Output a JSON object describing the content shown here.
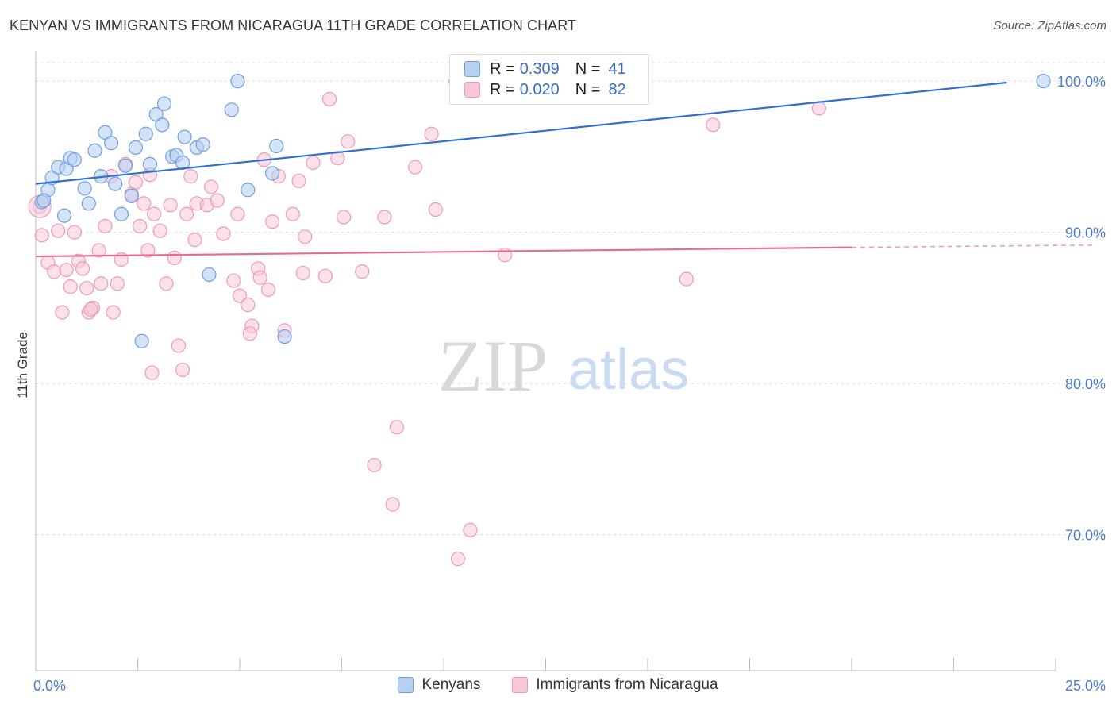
{
  "title": "KENYAN VS IMMIGRANTS FROM NICARAGUA 11TH GRADE CORRELATION CHART",
  "source": "Source: ZipAtlas.com",
  "watermark": {
    "zip": "ZIP",
    "atlas": "atlas"
  },
  "colors": {
    "blue_fill": "#b8d0f0",
    "blue_stroke": "#6f9fe0",
    "blue_line": "#2f6fcf",
    "pink_fill": "#f9c8d8",
    "pink_stroke": "#ee9ab6",
    "pink_line": "#e56d95",
    "tick_text": "#4a7cc9",
    "grid": "#d9d9d9"
  },
  "legend": {
    "rows": [
      {
        "r_label": "R =",
        "r_value": "0.309",
        "n_label": "N =",
        "n_value": "41"
      },
      {
        "r_label": "R =",
        "r_value": "0.020",
        "n_label": "N =",
        "n_value": "82"
      }
    ]
  },
  "series_labels": [
    "Kenyans",
    "Immigrants from Nicaragua"
  ],
  "chart_data": {
    "type": "scatter",
    "title": "KENYAN VS IMMIGRANTS FROM NICARAGUA 11TH GRADE CORRELATION CHART",
    "xlabel": "",
    "ylabel": "11th Grade",
    "xlim": [
      0,
      25
    ],
    "ylim": [
      61,
      102
    ],
    "x_tick_labels": [
      "0.0%",
      "25.0%"
    ],
    "y_ticks": [
      70,
      80,
      90,
      100
    ],
    "y_tick_labels": [
      "70.0%",
      "80.0%",
      "90.0%",
      "100.0%"
    ],
    "grid": true,
    "legend_position": "top-center",
    "series": [
      {
        "name": "Kenyans",
        "r": 0.309,
        "n": 41,
        "trend": {
          "x": [
            0,
            23.8
          ],
          "y": [
            93.2,
            99.9
          ]
        },
        "points": [
          [
            0.15,
            92.0
          ],
          [
            0.3,
            92.8
          ],
          [
            0.4,
            93.6
          ],
          [
            0.55,
            94.3
          ],
          [
            0.7,
            91.1
          ],
          [
            0.75,
            94.2
          ],
          [
            0.85,
            94.9
          ],
          [
            0.95,
            94.8
          ],
          [
            1.2,
            92.9
          ],
          [
            1.3,
            91.9
          ],
          [
            1.45,
            95.4
          ],
          [
            1.6,
            93.7
          ],
          [
            1.7,
            96.6
          ],
          [
            1.85,
            95.9
          ],
          [
            1.95,
            93.2
          ],
          [
            2.1,
            91.2
          ],
          [
            2.2,
            94.4
          ],
          [
            2.35,
            92.4
          ],
          [
            2.45,
            95.6
          ],
          [
            2.7,
            96.5
          ],
          [
            2.8,
            94.5
          ],
          [
            2.95,
            97.8
          ],
          [
            3.1,
            97.1
          ],
          [
            3.15,
            98.5
          ],
          [
            3.35,
            95.0
          ],
          [
            3.45,
            95.1
          ],
          [
            3.6,
            94.6
          ],
          [
            3.65,
            96.3
          ],
          [
            3.95,
            95.6
          ],
          [
            4.1,
            95.8
          ],
          [
            4.25,
            87.2
          ],
          [
            4.8,
            98.1
          ],
          [
            4.95,
            100.0
          ],
          [
            5.2,
            92.8
          ],
          [
            5.8,
            93.9
          ],
          [
            5.9,
            95.7
          ],
          [
            6.1,
            83.1
          ],
          [
            2.6,
            82.8
          ],
          [
            0.2,
            92.1
          ],
          [
            10.3,
            100.0
          ],
          [
            24.7,
            100.0
          ]
        ]
      },
      {
        "name": "Immigrants from Nicaragua",
        "r": 0.02,
        "n": 82,
        "trend": {
          "x": [
            0,
            20.0
          ],
          "y": [
            88.4,
            89.0
          ],
          "dashed_to": 25
        },
        "points": [
          [
            0.1,
            91.7
          ],
          [
            0.15,
            89.8
          ],
          [
            0.3,
            88.0
          ],
          [
            0.45,
            87.4
          ],
          [
            0.55,
            90.1
          ],
          [
            0.65,
            84.7
          ],
          [
            0.75,
            87.5
          ],
          [
            0.85,
            86.4
          ],
          [
            0.95,
            90.0
          ],
          [
            1.05,
            88.1
          ],
          [
            1.15,
            87.6
          ],
          [
            1.25,
            86.3
          ],
          [
            1.3,
            84.7
          ],
          [
            1.4,
            85.0
          ],
          [
            1.55,
            88.8
          ],
          [
            1.6,
            86.6
          ],
          [
            1.7,
            90.4
          ],
          [
            1.85,
            93.7
          ],
          [
            1.9,
            84.7
          ],
          [
            2.0,
            86.6
          ],
          [
            2.1,
            88.2
          ],
          [
            2.2,
            94.5
          ],
          [
            2.35,
            92.5
          ],
          [
            2.45,
            93.3
          ],
          [
            2.55,
            90.4
          ],
          [
            2.65,
            91.9
          ],
          [
            2.75,
            88.8
          ],
          [
            2.8,
            93.8
          ],
          [
            2.9,
            91.2
          ],
          [
            3.05,
            90.1
          ],
          [
            3.2,
            86.6
          ],
          [
            3.3,
            91.8
          ],
          [
            3.4,
            88.3
          ],
          [
            3.5,
            82.5
          ],
          [
            3.6,
            80.9
          ],
          [
            3.7,
            91.2
          ],
          [
            3.8,
            93.7
          ],
          [
            3.9,
            89.5
          ],
          [
            3.95,
            91.9
          ],
          [
            4.2,
            91.8
          ],
          [
            4.3,
            93.0
          ],
          [
            4.45,
            92.1
          ],
          [
            4.6,
            89.9
          ],
          [
            4.85,
            86.8
          ],
          [
            4.95,
            91.2
          ],
          [
            5.0,
            85.8
          ],
          [
            5.2,
            85.2
          ],
          [
            5.3,
            83.8
          ],
          [
            5.45,
            87.6
          ],
          [
            5.5,
            87.0
          ],
          [
            5.6,
            94.8
          ],
          [
            5.7,
            86.2
          ],
          [
            5.8,
            90.7
          ],
          [
            5.95,
            93.7
          ],
          [
            6.3,
            91.2
          ],
          [
            6.45,
            93.4
          ],
          [
            6.55,
            87.3
          ],
          [
            6.6,
            89.7
          ],
          [
            6.8,
            94.6
          ],
          [
            7.1,
            87.1
          ],
          [
            7.2,
            98.8
          ],
          [
            7.4,
            94.9
          ],
          [
            7.55,
            91.0
          ],
          [
            7.65,
            96.0
          ],
          [
            8.0,
            87.4
          ],
          [
            8.3,
            74.6
          ],
          [
            8.55,
            91.0
          ],
          [
            8.75,
            72.0
          ],
          [
            8.85,
            77.1
          ],
          [
            9.3,
            94.3
          ],
          [
            9.7,
            96.5
          ],
          [
            9.8,
            91.5
          ],
          [
            10.35,
            68.4
          ],
          [
            10.65,
            70.3
          ],
          [
            11.5,
            88.5
          ],
          [
            15.95,
            86.9
          ],
          [
            16.6,
            97.1
          ],
          [
            19.2,
            98.2
          ],
          [
            2.85,
            80.7
          ],
          [
            5.25,
            83.3
          ],
          [
            6.1,
            83.5
          ],
          [
            1.35,
            84.9
          ]
        ]
      }
    ]
  }
}
